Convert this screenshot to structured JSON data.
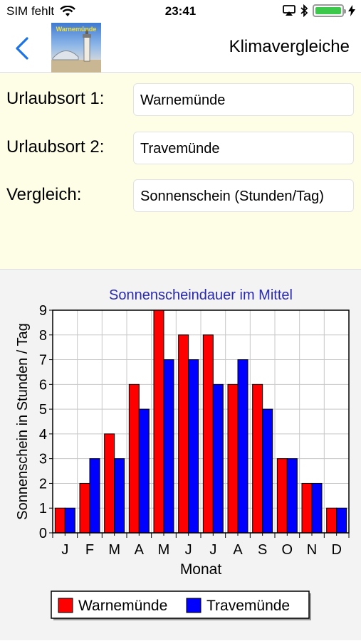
{
  "status_bar": {
    "carrier": "SIM fehlt",
    "time": "23:41",
    "icons": [
      "wifi-icon",
      "airplay-icon",
      "bluetooth-icon",
      "battery-icon",
      "charging-icon"
    ]
  },
  "nav": {
    "title": "Klimavergleiche",
    "thumbnail_text": "Warnemünde",
    "back_icon": "chevron-left-icon"
  },
  "form": {
    "rows": [
      {
        "label": "Urlaubsort 1:",
        "value": "Warnemünde"
      },
      {
        "label": "Urlaubsort 2:",
        "value": "Travemünde"
      },
      {
        "label": "Vergleich:",
        "value": "Sonnenschein (Stunden/Tag)"
      }
    ]
  },
  "colors": {
    "accent": "#1a73e8",
    "form_background": "#fefee6",
    "series_1": "#ff0000",
    "series_2": "#0000ff",
    "title": "#2a2ab0"
  },
  "chart_data": {
    "type": "bar",
    "title": "Sonnenscheindauer im Mittel",
    "xlabel": "Monat",
    "ylabel": "Sonnenschein in Stunden / Tag",
    "categories": [
      "J",
      "F",
      "M",
      "A",
      "M",
      "J",
      "J",
      "A",
      "S",
      "O",
      "N",
      "D"
    ],
    "series": [
      {
        "name": "Warnemünde",
        "color": "#ff0000",
        "values": [
          1,
          2,
          4,
          6,
          9,
          8,
          8,
          6,
          6,
          3,
          2,
          1
        ]
      },
      {
        "name": "Travemünde",
        "color": "#0000ff",
        "values": [
          1,
          3,
          3,
          5,
          7,
          7,
          6,
          7,
          5,
          3,
          2,
          1
        ]
      }
    ],
    "ylim": [
      0,
      9
    ],
    "yticks": [
      0,
      1,
      2,
      3,
      4,
      5,
      6,
      7,
      8,
      9
    ],
    "grid": true,
    "legend": "bottom"
  }
}
